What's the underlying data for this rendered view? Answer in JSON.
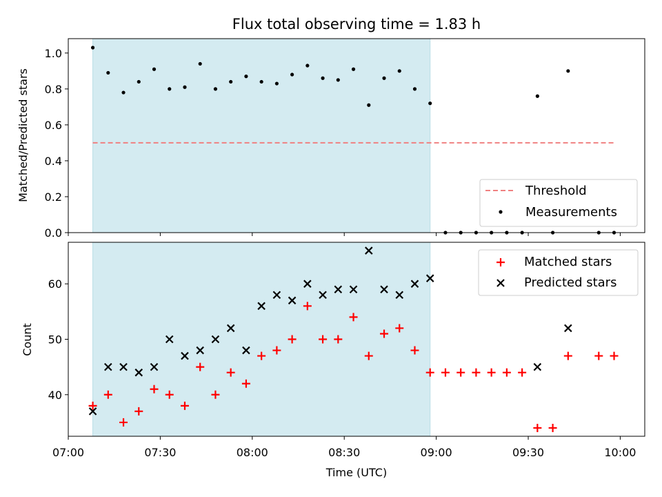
{
  "chart_data": [
    {
      "type": "scatter",
      "title": "Flux total observing time = 1.83 h",
      "ylabel": "Matched/Predicted stars",
      "ylim": [
        0,
        1.08
      ],
      "yticks": [
        0.0,
        0.2,
        0.4,
        0.6,
        0.8,
        1.0
      ],
      "ytick_labels": [
        "0.0",
        "0.2",
        "0.4",
        "0.6",
        "0.8",
        "1.0"
      ],
      "grid": false,
      "legend_position": "lower-right",
      "shaded_interval": [
        "07:08",
        "08:58"
      ],
      "shade_color": "#d4ebf1",
      "threshold": {
        "name": "Threshold",
        "value": 0.5,
        "x_range": [
          "07:08",
          "09:58"
        ],
        "color": "#f08080",
        "style": "dashed"
      },
      "measurements": {
        "name": "Measurements",
        "color": "#000000",
        "x": [
          "07:08",
          "07:13",
          "07:18",
          "07:23",
          "07:28",
          "07:33",
          "07:38",
          "07:43",
          "07:48",
          "07:53",
          "07:58",
          "08:03",
          "08:08",
          "08:13",
          "08:18",
          "08:23",
          "08:28",
          "08:33",
          "08:38",
          "08:43",
          "08:48",
          "08:53",
          "08:58",
          "09:03",
          "09:08",
          "09:13",
          "09:18",
          "09:23",
          "09:28",
          "09:33",
          "09:38",
          "09:43",
          "09:48",
          "09:53",
          "09:58"
        ],
        "y": [
          1.03,
          0.89,
          0.78,
          0.84,
          0.91,
          0.8,
          0.81,
          0.94,
          0.8,
          0.84,
          0.87,
          0.84,
          0.83,
          0.88,
          0.93,
          0.86,
          0.85,
          0.91,
          0.71,
          0.86,
          0.9,
          0.8,
          0.72,
          0.0,
          0.0,
          0.0,
          0.0,
          0.0,
          0.0,
          0.76,
          0.0,
          0.9,
          null,
          0.0,
          0.0
        ]
      }
    },
    {
      "type": "scatter",
      "xlabel": "Time (UTC)",
      "ylabel": "Count",
      "ylim": [
        32.5,
        67.5
      ],
      "yticks": [
        40,
        50,
        60
      ],
      "ytick_labels": [
        "40",
        "50",
        "60"
      ],
      "xlim": [
        "07:00",
        "10:08"
      ],
      "xticks": [
        "07:00",
        "07:30",
        "08:00",
        "08:30",
        "09:00",
        "09:30",
        "10:00"
      ],
      "xtick_labels": [
        "07:00",
        "07:30",
        "08:00",
        "08:30",
        "09:00",
        "09:30",
        "10:00"
      ],
      "grid": false,
      "legend_position": "upper-right",
      "shaded_interval": [
        "07:08",
        "08:58"
      ],
      "shade_color": "#d4ebf1",
      "series": [
        {
          "name": "Matched stars",
          "marker": "plus",
          "color": "#ff0000",
          "x": [
            "07:08",
            "07:13",
            "07:18",
            "07:23",
            "07:28",
            "07:33",
            "07:38",
            "07:43",
            "07:48",
            "07:53",
            "07:58",
            "08:03",
            "08:08",
            "08:13",
            "08:18",
            "08:23",
            "08:28",
            "08:33",
            "08:38",
            "08:43",
            "08:48",
            "08:53",
            "08:58",
            "09:03",
            "09:08",
            "09:13",
            "09:18",
            "09:23",
            "09:28",
            "09:33",
            "09:38",
            "09:43",
            "09:53",
            "09:58"
          ],
          "y": [
            38,
            40,
            35,
            37,
            41,
            40,
            38,
            45,
            40,
            44,
            42,
            47,
            48,
            50,
            56,
            50,
            50,
            54,
            47,
            51,
            52,
            48,
            44,
            44,
            44,
            44,
            44,
            44,
            44,
            34,
            34,
            47,
            47,
            47
          ]
        },
        {
          "name": "Predicted stars",
          "marker": "x",
          "color": "#000000",
          "x": [
            "07:08",
            "07:13",
            "07:18",
            "07:23",
            "07:28",
            "07:33",
            "07:38",
            "07:43",
            "07:48",
            "07:53",
            "07:58",
            "08:03",
            "08:08",
            "08:13",
            "08:18",
            "08:23",
            "08:28",
            "08:33",
            "08:38",
            "08:43",
            "08:48",
            "08:53",
            "08:58",
            "09:33",
            "09:43"
          ],
          "y": [
            37,
            45,
            45,
            44,
            45,
            50,
            47,
            48,
            50,
            52,
            48,
            56,
            58,
            57,
            60,
            58,
            59,
            59,
            66,
            59,
            58,
            60,
            61,
            45,
            52
          ]
        }
      ]
    }
  ]
}
